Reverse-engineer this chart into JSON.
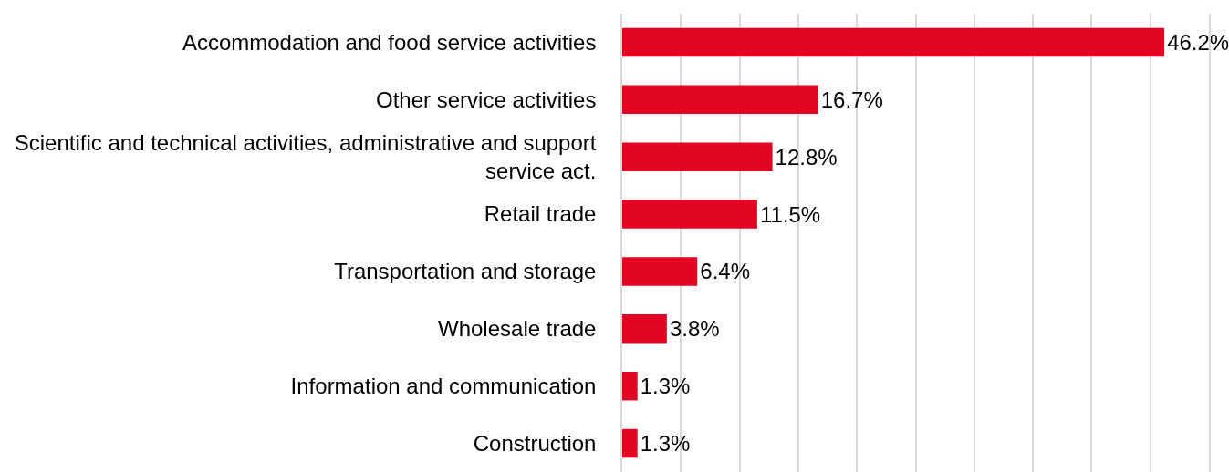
{
  "chart_data": {
    "type": "bar",
    "orientation": "horizontal",
    "categories": [
      "Accommodation and food service activities",
      "Other service activities",
      "Scientific and technical activities, administrative and support service act.",
      "Retail trade",
      "Transportation and storage",
      "Wholesale trade",
      "Information and communication",
      "Construction"
    ],
    "values": [
      46.2,
      16.7,
      12.8,
      11.5,
      6.4,
      3.8,
      1.3,
      1.3
    ],
    "value_labels": [
      "46.2%",
      "16.7%",
      "12.8%",
      "11.5%",
      "6.4%",
      "3.8%",
      "1.3%",
      "1.3%"
    ],
    "color": "#e30522",
    "xlim": [
      0,
      50
    ],
    "xticks": [
      {
        "value": 0,
        "label": null
      },
      {
        "value": 5,
        "label": null
      },
      {
        "value": 10,
        "label": null
      },
      {
        "value": 15,
        "label": null
      },
      {
        "value": 20,
        "label": null
      },
      {
        "value": 25,
        "label": null
      },
      {
        "value": 30,
        "label": null
      },
      {
        "value": 35,
        "label": null
      },
      {
        "value": 40,
        "label": null
      },
      {
        "value": 45,
        "label": null
      },
      {
        "value": 50,
        "label": null
      }
    ],
    "grid": "x",
    "tick_labels": "y"
  }
}
